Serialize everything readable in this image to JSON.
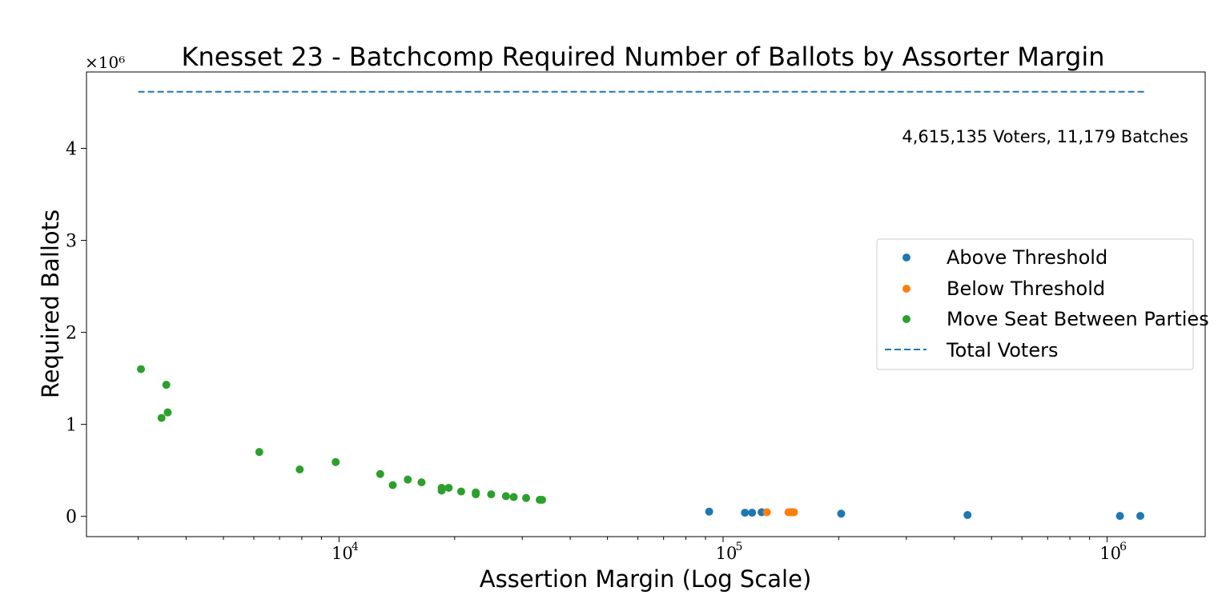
{
  "chart_data": {
    "type": "scatter",
    "title": "Knesset 23 - Batchcomp Required Number of Ballots by Assorter Margin",
    "xlabel": "Assertion Margin (Log Scale)",
    "ylabel": "Required Ballots",
    "xscale": "log",
    "xlim": [
      2200,
      1800000
    ],
    "ylim": [
      -220000,
      4830000
    ],
    "y_multiplier_label": "×10⁶",
    "xticks": [
      {
        "value": 10000,
        "base": "10",
        "exp": "4"
      },
      {
        "value": 100000,
        "base": "10",
        "exp": "5"
      },
      {
        "value": 1000000,
        "base": "10",
        "exp": "6"
      }
    ],
    "yticks": [
      {
        "value": 0,
        "label": "0"
      },
      {
        "value": 1000000,
        "label": "1"
      },
      {
        "value": 2000000,
        "label": "2"
      },
      {
        "value": 3000000,
        "label": "3"
      },
      {
        "value": 4000000,
        "label": "4"
      }
    ],
    "grid": false,
    "legend_position": "center-right",
    "annotation": "4,615,135 Voters, 11,179 Batches",
    "series": [
      {
        "name": "Above Threshold",
        "color": "#1f77b4",
        "marker": "dot",
        "points": [
          [
            92000,
            52000
          ],
          [
            114000,
            40000
          ],
          [
            119000,
            40000
          ],
          [
            126000,
            45000
          ],
          [
            203000,
            30000
          ],
          [
            433000,
            15000
          ],
          [
            1080000,
            5000
          ],
          [
            1220000,
            5000
          ]
        ]
      },
      {
        "name": "Below Threshold",
        "color": "#ff7f0e",
        "marker": "dot",
        "points": [
          [
            130000,
            45000
          ],
          [
            148000,
            45000
          ],
          [
            150000,
            45000
          ],
          [
            151000,
            45000
          ],
          [
            152000,
            45000
          ],
          [
            153000,
            45000
          ]
        ]
      },
      {
        "name": "Move Seat Between Parties",
        "color": "#2ca02c",
        "marker": "dot",
        "points": [
          [
            3050,
            1600000
          ],
          [
            3450,
            1070000
          ],
          [
            3550,
            1430000
          ],
          [
            3580,
            1130000
          ],
          [
            6200,
            700000
          ],
          [
            7900,
            510000
          ],
          [
            9800,
            590000
          ],
          [
            12800,
            460000
          ],
          [
            13800,
            340000
          ],
          [
            15100,
            400000
          ],
          [
            16400,
            370000
          ],
          [
            18500,
            310000
          ],
          [
            18500,
            280000
          ],
          [
            19300,
            310000
          ],
          [
            20800,
            270000
          ],
          [
            22700,
            260000
          ],
          [
            22700,
            240000
          ],
          [
            24900,
            240000
          ],
          [
            27200,
            220000
          ],
          [
            28500,
            210000
          ],
          [
            30700,
            200000
          ],
          [
            33300,
            180000
          ],
          [
            33800,
            180000
          ]
        ]
      },
      {
        "name": "Total Voters",
        "color": "#1f77b4",
        "marker": "dashed-line",
        "y": 4615135,
        "x_range": [
          3000,
          1250000
        ]
      }
    ]
  }
}
